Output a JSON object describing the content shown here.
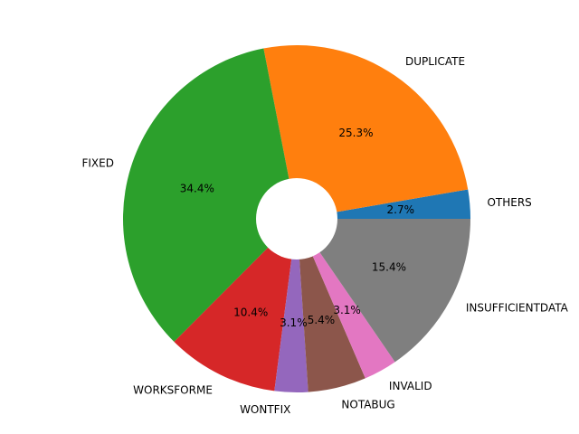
{
  "chart_data": {
    "type": "pie",
    "donut": true,
    "start_angle_deg": 0,
    "direction": "counterclockwise",
    "legend": "none",
    "slices": [
      {
        "label": "OTHERS",
        "value": 2.7,
        "pct_label": "2.7%",
        "color": "#1f77b4"
      },
      {
        "label": "DUPLICATE",
        "value": 25.3,
        "pct_label": "25.3%",
        "color": "#ff7f0e"
      },
      {
        "label": "FIXED",
        "value": 34.4,
        "pct_label": "34.4%",
        "color": "#2ca02c"
      },
      {
        "label": "WORKSFORME",
        "value": 10.4,
        "pct_label": "10.4%",
        "color": "#d62728"
      },
      {
        "label": "WONTFIX",
        "value": 3.1,
        "pct_label": "3.1%",
        "color": "#9467bd"
      },
      {
        "label": "NOTABUG",
        "value": 5.4,
        "pct_label": "5.4%",
        "color": "#8c564b"
      },
      {
        "label": "INVALID",
        "value": 3.1,
        "pct_label": "3.1%",
        "color": "#e377c2"
      },
      {
        "label": "INSUFFICIENTDATA",
        "value": 15.4,
        "pct_label": "15.4%",
        "color": "#7f7f7f"
      }
    ]
  }
}
